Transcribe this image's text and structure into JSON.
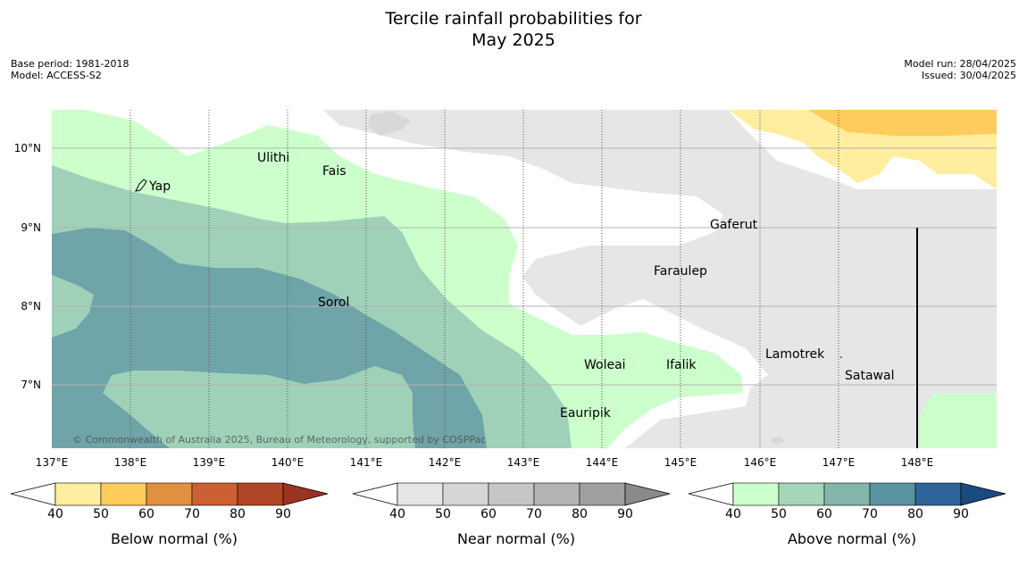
{
  "title_line1": "Tercile rainfall probabilities for",
  "title_line2": "May 2025",
  "base_period": "Base period: 1981-2018",
  "model": "Model: ACCESS-S2",
  "model_run": "Model run: 28/04/2025",
  "issued": "Issued: 30/04/2025",
  "copyright": "© Commonwealth of Australia 2025, Bureau of Meteorology, supported by COSPPac",
  "lon_labels": [
    "137°E",
    "138°E",
    "139°E",
    "140°E",
    "141°E",
    "142°E",
    "143°E",
    "144°E",
    "145°E",
    "146°E",
    "147°E",
    "148°E"
  ],
  "lat_labels": [
    "10°N",
    "9°N",
    "8°N",
    "7°N"
  ],
  "places": [
    {
      "name": "Yap"
    },
    {
      "name": "Ulithi"
    },
    {
      "name": "Fais"
    },
    {
      "name": "Gaferut"
    },
    {
      "name": "Faraulep"
    },
    {
      "name": "Sorol"
    },
    {
      "name": "Lamotrek"
    },
    {
      "name": "Woleai"
    },
    {
      "name": "Ifalik"
    },
    {
      "name": "Satawal"
    },
    {
      "name": "Eauripik"
    }
  ],
  "legends": {
    "below": {
      "title": "Below normal (%)",
      "ticks": [
        "40",
        "50",
        "60",
        "70",
        "80",
        "90"
      ],
      "colors": [
        "#ffeda0",
        "#fecc5c",
        "#e0913f",
        "#cc6032",
        "#b04626",
        "#9a3320"
      ]
    },
    "near": {
      "title": "Near normal (%)",
      "ticks": [
        "40",
        "50",
        "60",
        "70",
        "80",
        "90"
      ],
      "colors": [
        "#e6e6e6",
        "#d6d6d6",
        "#c6c6c6",
        "#b3b3b3",
        "#9f9f9f",
        "#8a8a8a"
      ]
    },
    "above": {
      "title": "Above normal (%)",
      "ticks": [
        "40",
        "50",
        "60",
        "70",
        "80",
        "90"
      ],
      "colors": [
        "#ccffcc",
        "#a5d6b9",
        "#84b6ab",
        "#5a93a1",
        "#2e6499",
        "#1a4b80"
      ]
    }
  },
  "map_colors": {
    "above_40": "#ccffcc",
    "above_50": "#9fd1b9",
    "above_60": "#6fa4a8",
    "near_40": "#e6e6e6",
    "near_50": "#d8d8d8",
    "below_40": "#ffeda0",
    "below_50": "#fecc5c"
  }
}
